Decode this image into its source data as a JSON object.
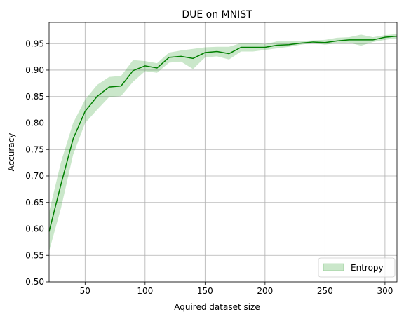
{
  "chart_data": {
    "type": "line",
    "title": "DUE on MNIST",
    "xlabel": "Aquired dataset size",
    "ylabel": "Accuracy",
    "xlim": [
      20,
      310
    ],
    "ylim": [
      0.5,
      0.99
    ],
    "xticks": [
      50,
      100,
      150,
      200,
      250,
      300
    ],
    "yticks": [
      0.5,
      0.55,
      0.6,
      0.65,
      0.7,
      0.75,
      0.8,
      0.85,
      0.9,
      0.95
    ],
    "grid": true,
    "legend_position": "lower right",
    "series": [
      {
        "name": "Entropy",
        "color": "#008000",
        "band_color": "#2ca02c",
        "x": [
          20,
          30,
          40,
          50,
          60,
          70,
          80,
          90,
          100,
          110,
          120,
          130,
          140,
          150,
          160,
          170,
          180,
          190,
          200,
          210,
          220,
          230,
          240,
          250,
          260,
          270,
          280,
          290,
          300,
          310
        ],
        "y": [
          0.595,
          0.685,
          0.77,
          0.822,
          0.85,
          0.868,
          0.87,
          0.899,
          0.908,
          0.904,
          0.924,
          0.926,
          0.922,
          0.933,
          0.935,
          0.931,
          0.943,
          0.943,
          0.943,
          0.947,
          0.948,
          0.951,
          0.953,
          0.952,
          0.955,
          0.957,
          0.957,
          0.957,
          0.962,
          0.964
        ],
        "lower": [
          0.558,
          0.64,
          0.74,
          0.8,
          0.825,
          0.849,
          0.851,
          0.878,
          0.898,
          0.895,
          0.914,
          0.916,
          0.902,
          0.924,
          0.926,
          0.92,
          0.935,
          0.935,
          0.938,
          0.941,
          0.944,
          0.948,
          0.951,
          0.948,
          0.951,
          0.952,
          0.946,
          0.953,
          0.957,
          0.96
        ],
        "upper": [
          0.632,
          0.727,
          0.8,
          0.844,
          0.872,
          0.887,
          0.889,
          0.919,
          0.917,
          0.913,
          0.933,
          0.937,
          0.94,
          0.943,
          0.944,
          0.944,
          0.951,
          0.951,
          0.949,
          0.954,
          0.954,
          0.955,
          0.956,
          0.957,
          0.961,
          0.962,
          0.967,
          0.962,
          0.966,
          0.968
        ]
      }
    ]
  }
}
